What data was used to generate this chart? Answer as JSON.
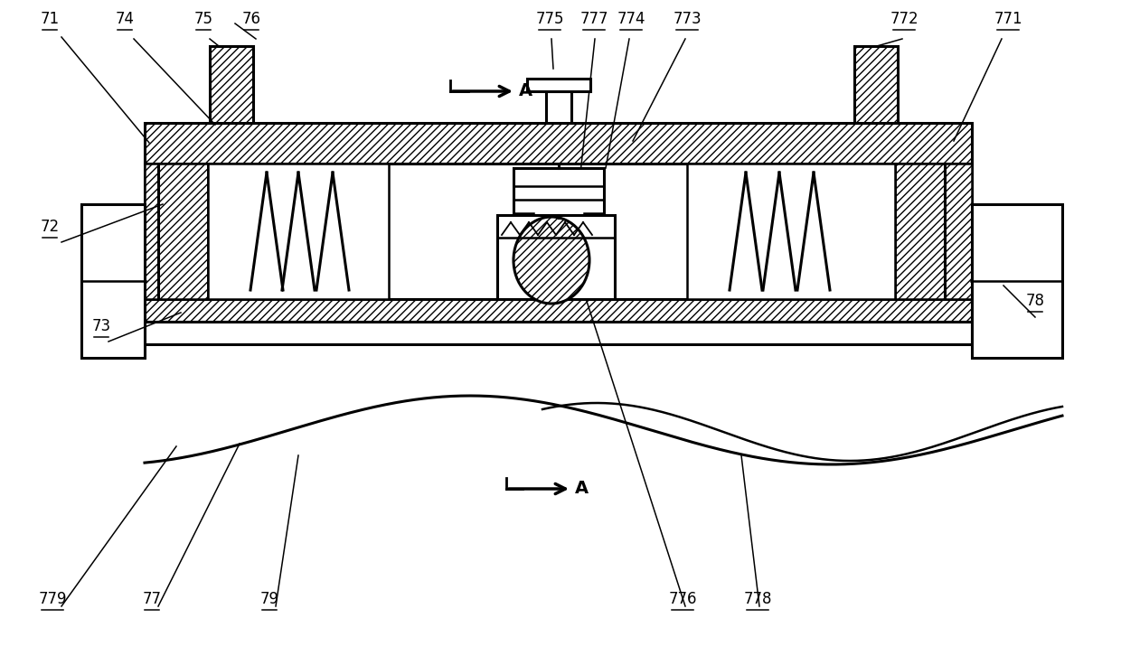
{
  "bg": "#ffffff",
  "lc": "#000000",
  "lw": 1.8,
  "lw2": 2.2,
  "fs": 12,
  "fig_w": 12.4,
  "fig_h": 7.36,
  "dpi": 100,
  "labels": [
    [
      "71",
      55,
      700
    ],
    [
      "72",
      55,
      470
    ],
    [
      "73",
      112,
      360
    ],
    [
      "74",
      138,
      700
    ],
    [
      "75",
      225,
      700
    ],
    [
      "76",
      278,
      700
    ],
    [
      "77",
      168,
      58
    ],
    [
      "78",
      1145,
      388
    ],
    [
      "79",
      298,
      58
    ],
    [
      "771",
      1115,
      700
    ],
    [
      "772",
      1000,
      700
    ],
    [
      "773",
      760,
      700
    ],
    [
      "774",
      698,
      700
    ],
    [
      "775",
      608,
      700
    ],
    [
      "776",
      755,
      58
    ],
    [
      "777",
      657,
      700
    ],
    [
      "778",
      838,
      58
    ],
    [
      "779",
      58,
      58
    ]
  ]
}
